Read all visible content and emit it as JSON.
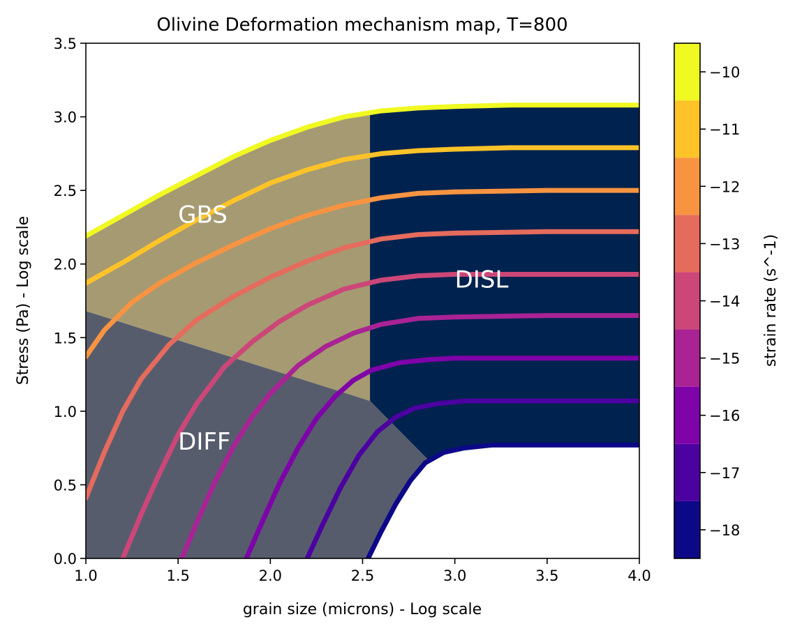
{
  "chart_data": {
    "type": "line",
    "title": "Olivine Deformation mechanism map, T=800",
    "xlabel": "grain size (microns) - Log scale",
    "ylabel": "Stress (Pa) - Log scale",
    "xlim": [
      1.0,
      4.0
    ],
    "ylim": [
      0.0,
      3.5
    ],
    "xticks": [
      "1.0",
      "1.5",
      "2.0",
      "2.5",
      "3.0",
      "3.5",
      "4.0"
    ],
    "yticks": [
      "0.0",
      "0.5",
      "1.0",
      "1.5",
      "2.0",
      "2.5",
      "3.0",
      "3.5"
    ],
    "grid": false,
    "regions": [
      {
        "label": "GBS",
        "color": "#a69a72",
        "label_pos": [
          1.5,
          2.28
        ]
      },
      {
        "label": "DISL",
        "color": "#00224e",
        "label_pos": [
          3.0,
          1.84
        ]
      },
      {
        "label": "DIFF",
        "color": "#575c6d",
        "label_pos": [
          1.5,
          0.74
        ]
      }
    ],
    "region_boundaries": {
      "diff_gbs": [
        [
          1.0,
          1.68
        ],
        [
          2.54,
          1.07
        ]
      ],
      "gbs_disl": [
        [
          2.54,
          1.07
        ],
        [
          2.54,
          2.97
        ]
      ],
      "diff_disl": [
        [
          2.54,
          1.07
        ],
        [
          2.86,
          0.69
        ]
      ]
    },
    "colorbar": {
      "label": "strain rate (s^-1)",
      "range": [
        -18.5,
        -9.5
      ],
      "ticks": [
        "−10",
        "−11",
        "−12",
        "−13",
        "−14",
        "−15",
        "−16",
        "−17",
        "−18"
      ],
      "levels": [
        -18,
        -17,
        -16,
        -15,
        -14,
        -13,
        -12,
        -11,
        -10
      ],
      "colors": [
        "#0d0887",
        "#4c02a1",
        "#7e03a8",
        "#a92395",
        "#cc4778",
        "#e56b5d",
        "#f89441",
        "#fdc328",
        "#f0f921"
      ]
    },
    "series": [
      {
        "strain_rate": -10,
        "color": "#f0f921",
        "x": [
          1.0,
          1.2,
          1.4,
          1.6,
          1.8,
          2.0,
          2.2,
          2.4,
          2.6,
          2.8,
          3.0,
          3.3,
          3.6,
          4.0
        ],
        "y": [
          2.19,
          2.33,
          2.47,
          2.6,
          2.73,
          2.84,
          2.93,
          3.0,
          3.04,
          3.06,
          3.07,
          3.08,
          3.08,
          3.08
        ]
      },
      {
        "strain_rate": -11,
        "color": "#fdc328",
        "x": [
          1.0,
          1.2,
          1.4,
          1.6,
          1.8,
          2.0,
          2.2,
          2.4,
          2.6,
          2.8,
          3.0,
          3.3,
          3.6,
          4.0
        ],
        "y": [
          1.87,
          2.01,
          2.16,
          2.3,
          2.43,
          2.55,
          2.64,
          2.71,
          2.75,
          2.77,
          2.78,
          2.79,
          2.79,
          2.79
        ]
      },
      {
        "strain_rate": -12,
        "color": "#f89441",
        "x": [
          1.0,
          1.1,
          1.25,
          1.4,
          1.6,
          1.8,
          2.0,
          2.2,
          2.4,
          2.6,
          2.8,
          3.0,
          3.5,
          4.0
        ],
        "y": [
          1.37,
          1.55,
          1.74,
          1.87,
          2.01,
          2.13,
          2.24,
          2.33,
          2.4,
          2.45,
          2.48,
          2.49,
          2.5,
          2.5
        ]
      },
      {
        "strain_rate": -13,
        "color": "#e56b5d",
        "x": [
          1.0,
          1.1,
          1.2,
          1.3,
          1.45,
          1.6,
          1.8,
          2.0,
          2.2,
          2.4,
          2.6,
          2.8,
          3.0,
          3.5,
          4.0
        ],
        "y": [
          0.41,
          0.72,
          1.0,
          1.22,
          1.45,
          1.62,
          1.78,
          1.91,
          2.02,
          2.11,
          2.17,
          2.2,
          2.21,
          2.22,
          2.22
        ]
      },
      {
        "strain_rate": -14,
        "color": "#cc4778",
        "x": [
          1.2,
          1.3,
          1.4,
          1.5,
          1.6,
          1.75,
          1.9,
          2.05,
          2.2,
          2.4,
          2.6,
          2.8,
          3.0,
          3.5,
          4.0
        ],
        "y": [
          0.0,
          0.3,
          0.58,
          0.84,
          1.05,
          1.3,
          1.47,
          1.61,
          1.72,
          1.83,
          1.89,
          1.92,
          1.93,
          1.93,
          1.93
        ]
      },
      {
        "strain_rate": -15,
        "color": "#a92395",
        "x": [
          1.52,
          1.6,
          1.7,
          1.8,
          1.9,
          2.0,
          2.15,
          2.3,
          2.45,
          2.6,
          2.8,
          3.0,
          3.5,
          4.0
        ],
        "y": [
          0.0,
          0.24,
          0.52,
          0.76,
          0.96,
          1.12,
          1.31,
          1.44,
          1.53,
          1.59,
          1.63,
          1.64,
          1.65,
          1.65
        ]
      },
      {
        "strain_rate": -16,
        "color": "#7e03a8",
        "x": [
          1.87,
          1.95,
          2.05,
          2.15,
          2.25,
          2.35,
          2.45,
          2.55,
          2.7,
          2.85,
          3.0,
          3.5,
          4.0
        ],
        "y": [
          0.0,
          0.23,
          0.51,
          0.75,
          0.95,
          1.1,
          1.21,
          1.28,
          1.33,
          1.35,
          1.36,
          1.36,
          1.36
        ]
      },
      {
        "strain_rate": -17,
        "color": "#4c02a1",
        "x": [
          2.2,
          2.28,
          2.38,
          2.48,
          2.58,
          2.68,
          2.78,
          2.9,
          3.05,
          3.3,
          3.6,
          4.0
        ],
        "y": [
          0.0,
          0.22,
          0.48,
          0.7,
          0.86,
          0.96,
          1.02,
          1.05,
          1.07,
          1.07,
          1.07,
          1.07
        ]
      },
      {
        "strain_rate": -18,
        "color": "#0d0887",
        "x": [
          2.53,
          2.6,
          2.68,
          2.76,
          2.84,
          2.94,
          3.05,
          3.2,
          3.4,
          3.7,
          4.0
        ],
        "y": [
          0.0,
          0.18,
          0.37,
          0.53,
          0.65,
          0.72,
          0.75,
          0.77,
          0.77,
          0.77,
          0.77
        ]
      }
    ]
  }
}
